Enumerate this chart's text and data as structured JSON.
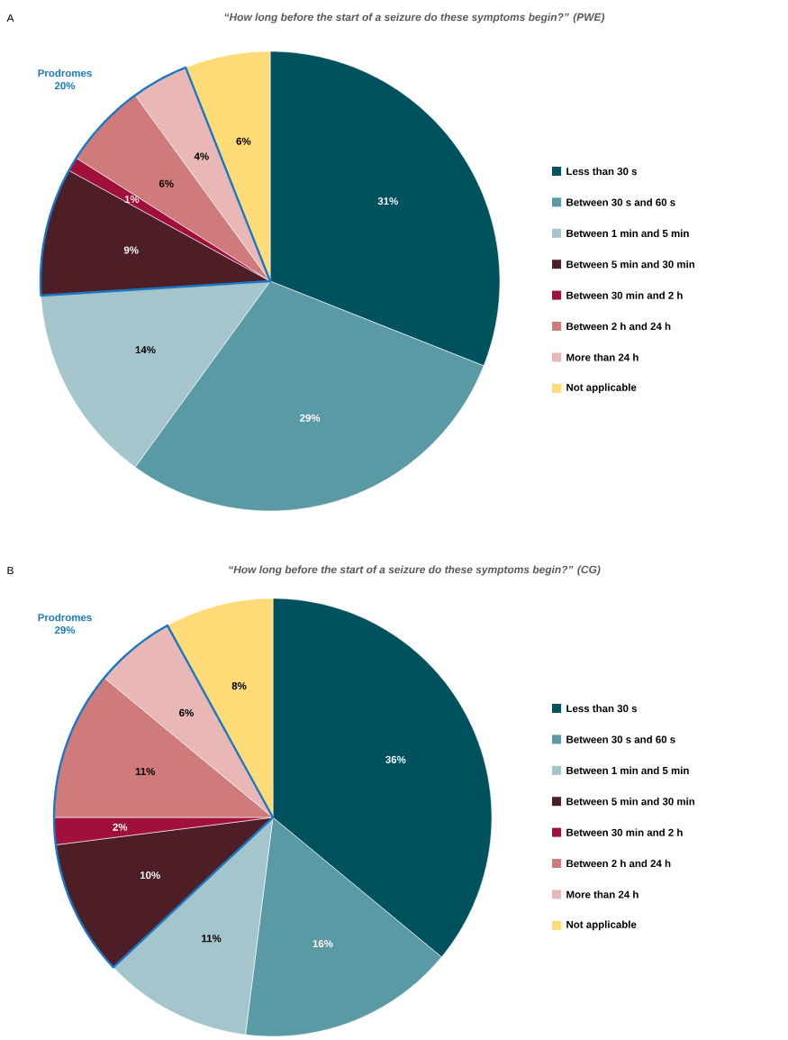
{
  "chart_data": [
    {
      "type": "pie",
      "title": "“How long before the start of a seizure do these symptoms begin?” (PWE)",
      "categories": [
        "Less than 30 s",
        "Between 30 s and 60 s",
        "Between 1 min and 5 min",
        "Between 5 min and 30 min",
        "Between 30 min and 2 h",
        "Between 2 h and 24 h",
        "More than 24 h",
        "Not applicable"
      ],
      "values": [
        31,
        29,
        14,
        9,
        1,
        6,
        4,
        6
      ],
      "value_labels": [
        "31%",
        "29%",
        "14%",
        "9%",
        "1%",
        "6%",
        "4%",
        "6%"
      ],
      "colors": [
        "#00525e",
        "#5a9aa5",
        "#a3c5cb",
        "#4e1e26",
        "#a0103a",
        "#cf7b7c",
        "#e8b7b6",
        "#fedb76"
      ],
      "legend": "right",
      "annotations": [
        "A",
        "Prodromes 20%"
      ]
    },
    {
      "type": "pie",
      "title": "“How long before the start of a seizure do these symptoms begin?” (CG)",
      "categories": [
        "Less than 30 s",
        "Between 30 s and 60 s",
        "Between 1 min and 5 min",
        "Between 5 min and 30 min",
        "Between 30 min and 2 h",
        "Between 2 h and 24 h",
        "More than 24 h",
        "Not applicable"
      ],
      "values": [
        36,
        16,
        11,
        10,
        2,
        11,
        6,
        8
      ],
      "value_labels": [
        "36%",
        "16%",
        "11%",
        "10%",
        "2%",
        "11%",
        "6%",
        "8%"
      ],
      "colors": [
        "#00525e",
        "#5a9aa5",
        "#a3c5cb",
        "#4e1e26",
        "#a0103a",
        "#cf7b7c",
        "#e8b7b6",
        "#fedb76"
      ],
      "legend": "right",
      "annotations": [
        "B",
        "Prodromes 29%"
      ]
    }
  ]
}
